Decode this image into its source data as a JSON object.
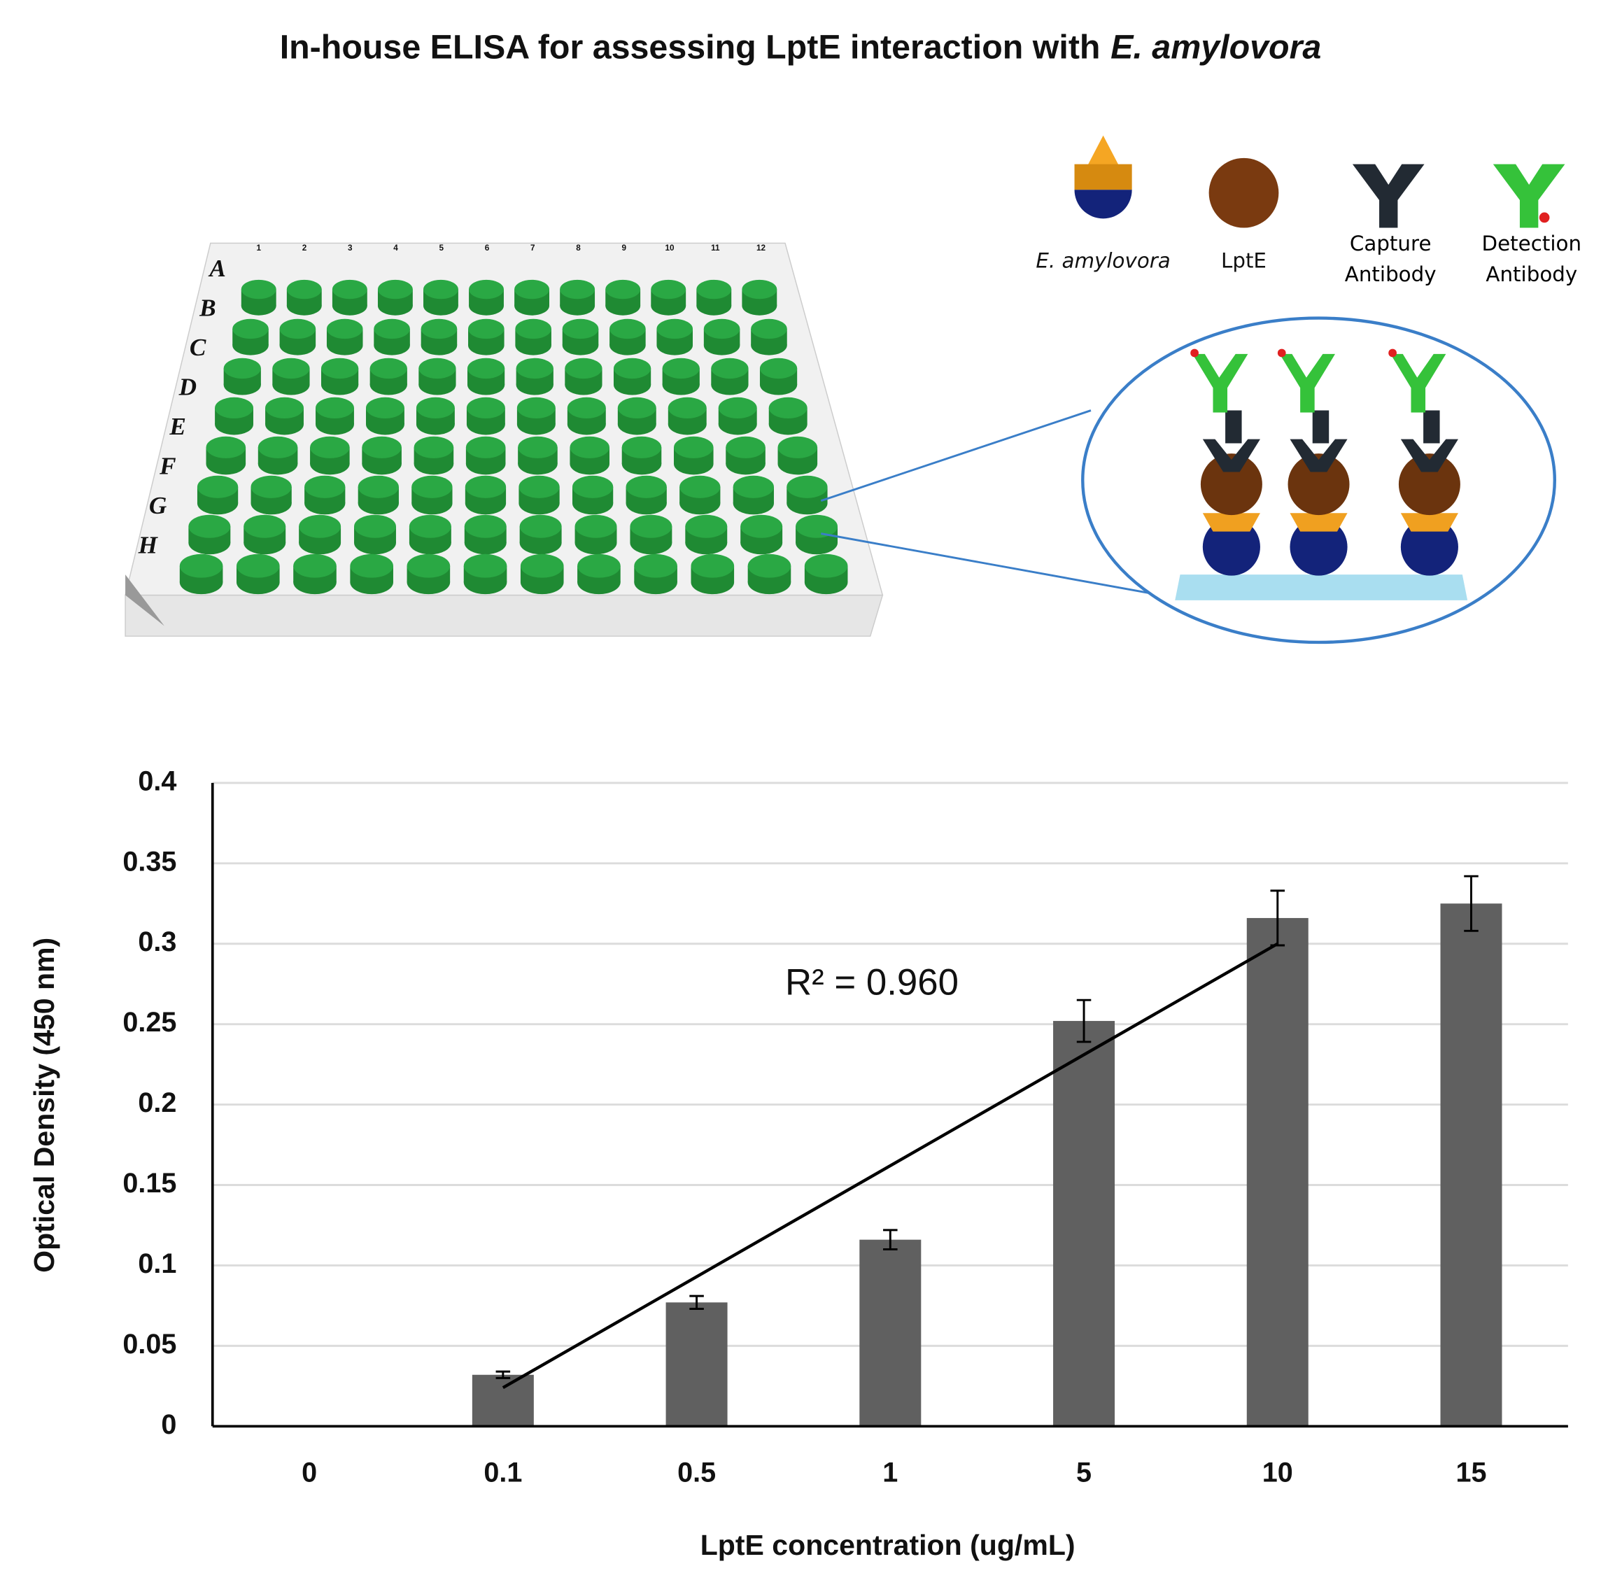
{
  "title": [
    "In-house ELISA for assessing LptE interaction with",
    "E. amylovora"
  ],
  "diagram": {
    "legend": [
      "E. amylovora",
      "LptE",
      "Capture Antibody",
      "Detection Antibody"
    ],
    "plate_rows": [
      "A",
      "B",
      "C",
      "D",
      "E",
      "F",
      "G",
      "H"
    ],
    "plate_columns": [
      "1",
      "2",
      "3",
      "4",
      "5",
      "6",
      "7",
      "8",
      "9",
      "10",
      "11",
      "12"
    ]
  },
  "chart_data": {
    "type": "bar",
    "categories": [
      "0",
      "0.1",
      "0.5",
      "1",
      "5",
      "10",
      "15"
    ],
    "values": [
      0,
      0.032,
      0.077,
      0.116,
      0.252,
      0.316,
      0.325
    ],
    "errors": [
      null,
      0.002,
      0.004,
      0.006,
      0.013,
      0.017,
      0.017
    ],
    "color": "#606060",
    "x_label": "LptE concentration (ug/mL)",
    "y_label": "Optical Density (450 nm)",
    "ylim": [
      0,
      0.4
    ],
    "yticks": [
      0,
      0.05,
      0.1,
      0.15,
      0.2,
      0.25,
      0.3,
      0.35,
      0.4
    ],
    "grid": true,
    "trendline": {
      "values": [
        null,
        0.024,
        0.093,
        0.162,
        0.231,
        0.3,
        null
      ],
      "label": "R² = 0.960",
      "color": "#000000"
    }
  }
}
